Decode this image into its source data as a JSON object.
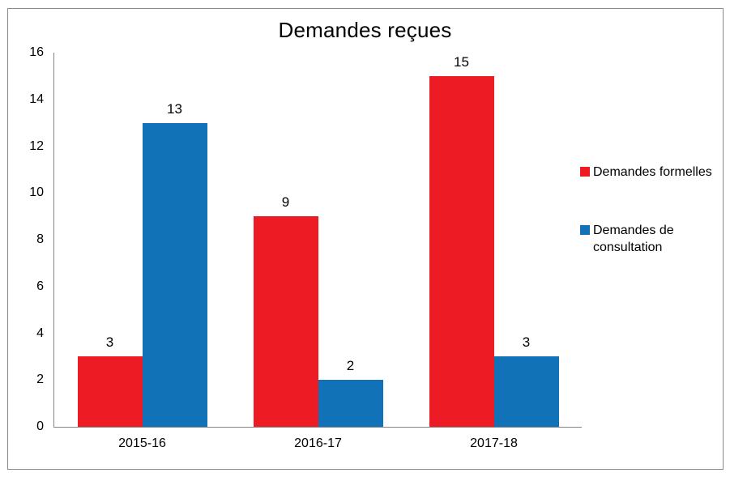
{
  "chart_data": {
    "type": "bar",
    "title": "Demandes reçues",
    "categories": [
      "2015-16",
      "2016-17",
      "2017-18"
    ],
    "series": [
      {
        "name": "Demandes formelles",
        "color": "#ED1C24",
        "values": [
          3,
          9,
          15
        ]
      },
      {
        "name": "Demandes de consultation",
        "color": "#1272B8",
        "values": [
          13,
          2,
          3
        ]
      }
    ],
    "ylim": [
      0,
      16
    ],
    "yticks": [
      0,
      2,
      4,
      6,
      8,
      10,
      12,
      14,
      16
    ],
    "xlabel": "",
    "ylabel": "",
    "grid": false,
    "legend_position": "right",
    "data_labels": true
  },
  "colors": {
    "axis": "#848484",
    "frame_border": "#8a8a8a",
    "text": "#000000"
  }
}
